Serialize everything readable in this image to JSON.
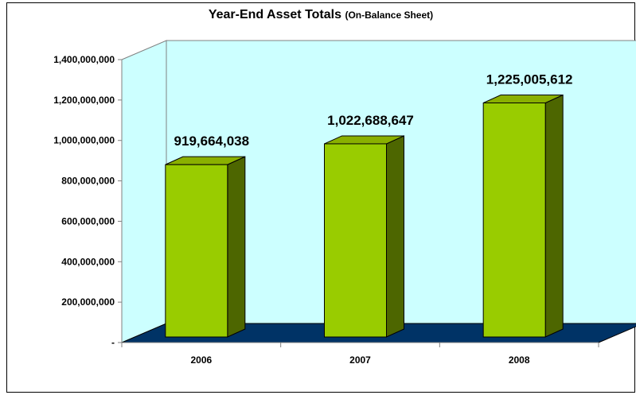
{
  "chart_data": {
    "type": "bar",
    "title": "Year-End Asset Totals",
    "subtitle": "(On-Balance Sheet)",
    "categories": [
      "2006",
      "2007",
      "2008"
    ],
    "values": [
      919664038,
      1022688647,
      1225005612
    ],
    "data_labels": [
      "919,664,038",
      "1,022,688,647",
      "1,225,005,612"
    ],
    "y_ticks": [
      {
        "value": 0,
        "label": "-"
      },
      {
        "value": 200000000,
        "label": "200,000,000"
      },
      {
        "value": 400000000,
        "label": "400,000,000"
      },
      {
        "value": 600000000,
        "label": "600,000,000"
      },
      {
        "value": 800000000,
        "label": "800,000,000"
      },
      {
        "value": 1000000000,
        "label": "1,000,000,000"
      },
      {
        "value": 1200000000,
        "label": "1,200,000,000"
      },
      {
        "value": 1400000000,
        "label": "1,400,000,000"
      }
    ],
    "ylim": [
      0,
      1400000000
    ],
    "grid": false,
    "legend": "none",
    "colors": {
      "back_wall": "#ccffff",
      "floor": "#003366",
      "bar_front": "#99cc00",
      "bar_top": "#8ab000",
      "bar_side": "#4d6600"
    }
  }
}
